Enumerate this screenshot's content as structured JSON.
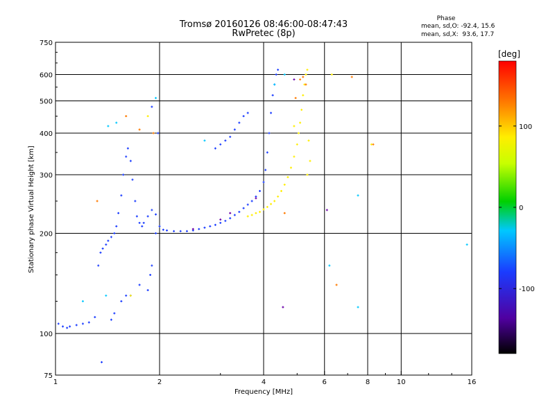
{
  "header": {
    "title_line1": "Tromsø 20160126 08:46:00-08:47:43",
    "title_line2": "RwPretec (8p)",
    "phase_title": "Phase",
    "phase_o": "mean, sd,O: -92.4, 15.6",
    "phase_x": "mean, sd,X:  93.6, 17.7"
  },
  "colorbar": {
    "label": "[deg]",
    "min": -180,
    "max": 180,
    "ticks": [
      "100",
      "0",
      "-100"
    ],
    "tick_values": [
      100,
      0,
      -100
    ]
  },
  "chart_data": {
    "type": "scatter",
    "title": "Tromsø 20160126 08:46:00-08:47:43",
    "subtitle": "RwPretec (8p)",
    "xlabel": "Frequency [MHz]",
    "ylabel": "Stationary phase Virtual Height [km]",
    "x_scale": "log",
    "y_scale": "log",
    "xlim": [
      1,
      16
    ],
    "ylim": [
      75,
      750
    ],
    "x_ticks": [
      1,
      2,
      4,
      6,
      8,
      10,
      16
    ],
    "x_tick_labels": [
      "1",
      "2",
      "4",
      "6",
      "8",
      "10",
      "16"
    ],
    "y_ticks": [
      75,
      100,
      200,
      300,
      400,
      500,
      600,
      750
    ],
    "y_tick_labels": [
      "75",
      "100",
      "200",
      "300",
      "400",
      "500",
      "600",
      "750"
    ],
    "grid_x": [
      2,
      4,
      6,
      8,
      10
    ],
    "grid_y": [
      100,
      200,
      300,
      400,
      500,
      600
    ],
    "grid": true,
    "series": [
      {
        "mode": "O",
        "color": "#1a3cff",
        "points": [
          [
            1.02,
            107
          ],
          [
            1.05,
            105
          ],
          [
            1.08,
            104
          ],
          [
            1.1,
            105
          ],
          [
            1.15,
            106
          ],
          [
            1.2,
            107
          ],
          [
            1.25,
            108
          ],
          [
            1.3,
            112
          ],
          [
            1.33,
            160
          ],
          [
            1.35,
            175
          ],
          [
            1.37,
            180
          ],
          [
            1.4,
            185
          ],
          [
            1.42,
            190
          ],
          [
            1.45,
            195
          ],
          [
            1.48,
            200
          ],
          [
            1.5,
            210
          ],
          [
            1.52,
            230
          ],
          [
            1.55,
            260
          ],
          [
            1.57,
            300
          ],
          [
            1.6,
            340
          ],
          [
            1.62,
            360
          ],
          [
            1.65,
            330
          ],
          [
            1.67,
            290
          ],
          [
            1.7,
            250
          ],
          [
            1.72,
            225
          ],
          [
            1.75,
            215
          ],
          [
            1.78,
            210
          ],
          [
            1.8,
            215
          ],
          [
            1.85,
            225
          ],
          [
            1.9,
            235
          ],
          [
            1.95,
            228
          ],
          [
            2.0,
            210
          ],
          [
            2.05,
            205
          ],
          [
            2.1,
            204
          ],
          [
            2.2,
            203
          ],
          [
            2.3,
            203
          ],
          [
            2.4,
            203
          ],
          [
            2.5,
            204
          ],
          [
            2.6,
            206
          ],
          [
            2.7,
            208
          ],
          [
            2.8,
            210
          ],
          [
            2.9,
            212
          ],
          [
            3.0,
            215
          ],
          [
            3.1,
            218
          ],
          [
            3.2,
            222
          ],
          [
            3.3,
            227
          ],
          [
            3.4,
            232
          ],
          [
            3.5,
            238
          ],
          [
            3.6,
            244
          ],
          [
            3.7,
            250
          ],
          [
            3.8,
            258
          ],
          [
            3.9,
            268
          ],
          [
            4.0,
            285
          ],
          [
            4.05,
            310
          ],
          [
            4.1,
            350
          ],
          [
            4.15,
            400
          ],
          [
            4.2,
            460
          ],
          [
            4.25,
            520
          ],
          [
            4.3,
            560
          ],
          [
            4.35,
            600
          ],
          [
            4.4,
            620
          ],
          [
            2.9,
            360
          ],
          [
            3.0,
            370
          ],
          [
            3.1,
            380
          ],
          [
            3.2,
            390
          ],
          [
            3.3,
            410
          ],
          [
            3.4,
            430
          ],
          [
            3.5,
            450
          ],
          [
            3.6,
            460
          ],
          [
            1.45,
            110
          ],
          [
            1.48,
            115
          ],
          [
            1.55,
            125
          ],
          [
            1.6,
            130
          ],
          [
            1.65,
            130
          ],
          [
            1.75,
            140
          ],
          [
            1.85,
            135
          ],
          [
            1.88,
            150
          ],
          [
            1.9,
            160
          ],
          [
            1.95,
            200
          ],
          [
            1.98,
            400
          ],
          [
            1.9,
            480
          ],
          [
            1.36,
            82
          ]
        ]
      },
      {
        "mode": "X",
        "color": "#ffee00",
        "points": [
          [
            3.6,
            225
          ],
          [
            3.7,
            227
          ],
          [
            3.8,
            230
          ],
          [
            3.9,
            232
          ],
          [
            4.0,
            236
          ],
          [
            4.1,
            240
          ],
          [
            4.2,
            245
          ],
          [
            4.3,
            250
          ],
          [
            4.4,
            258
          ],
          [
            4.5,
            268
          ],
          [
            4.6,
            280
          ],
          [
            4.7,
            295
          ],
          [
            4.8,
            315
          ],
          [
            4.9,
            340
          ],
          [
            5.0,
            370
          ],
          [
            5.05,
            400
          ],
          [
            5.1,
            430
          ],
          [
            5.15,
            470
          ],
          [
            5.2,
            520
          ],
          [
            5.25,
            560
          ],
          [
            5.3,
            600
          ],
          [
            5.35,
            620
          ],
          [
            4.9,
            420
          ],
          [
            5.4,
            380
          ],
          [
            5.45,
            330
          ],
          [
            5.35,
            300
          ],
          [
            1.65,
            130
          ],
          [
            1.85,
            450
          ],
          [
            6.3,
            600
          ],
          [
            8.2,
            370
          ]
        ]
      },
      {
        "mode": "other",
        "color": "#ff7a00",
        "points": [
          [
            5.3,
            560
          ],
          [
            5.2,
            590
          ],
          [
            4.6,
            230
          ],
          [
            6.5,
            140
          ],
          [
            7.2,
            590
          ],
          [
            8.3,
            370
          ],
          [
            1.32,
            250
          ],
          [
            1.6,
            450
          ],
          [
            4.95,
            510
          ],
          [
            5.1,
            580
          ],
          [
            1.75,
            410
          ],
          [
            1.92,
            400
          ]
        ]
      },
      {
        "mode": "other",
        "color": "#00c8ff",
        "points": [
          [
            1.42,
            420
          ],
          [
            1.5,
            430
          ],
          [
            1.2,
            125
          ],
          [
            1.4,
            130
          ],
          [
            6.2,
            160
          ],
          [
            7.5,
            260
          ],
          [
            7.5,
            120
          ],
          [
            15.5,
            185
          ],
          [
            4.6,
            600
          ],
          [
            2.7,
            380
          ],
          [
            1.95,
            510
          ],
          [
            4.3,
            560
          ]
        ]
      },
      {
        "mode": "other",
        "color": "#6a00a8",
        "points": [
          [
            3.2,
            230
          ],
          [
            3.0,
            220
          ],
          [
            2.5,
            206
          ],
          [
            3.8,
            255
          ],
          [
            4.55,
            120
          ],
          [
            6.1,
            235
          ],
          [
            4.9,
            580
          ]
        ]
      }
    ]
  }
}
